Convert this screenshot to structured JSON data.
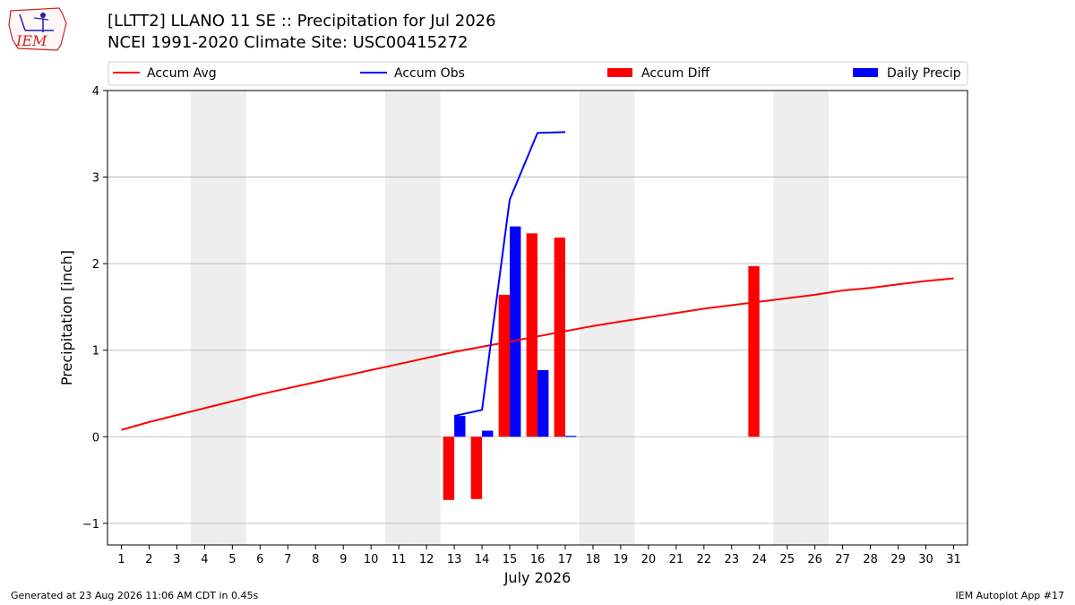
{
  "header": {
    "title_line1": "[LLTT2] LLANO 11 SE :: Precipitation for Jul 2026",
    "title_line2": "NCEI 1991-2020 Climate Site: USC00415272",
    "logo_text": "IEM"
  },
  "footer": {
    "generated": "Generated at 23 Aug 2026 11:06 AM CDT in 0.45s",
    "app": "IEM Autoplot App #17"
  },
  "colors": {
    "avg": "#ff0000",
    "obs": "#0000ff",
    "diff": "#ff0000",
    "daily": "#0000ff",
    "weekend": "#eeeeee",
    "grid": "#b0b0b0"
  },
  "chart_data": {
    "type": "bar",
    "xlabel": "July 2026",
    "ylabel": "Precipitation [inch]",
    "xlim": [
      0.5,
      31.5
    ],
    "ylim": [
      -1.25,
      4.0
    ],
    "yticks": [
      -1,
      0,
      1,
      2,
      3,
      4
    ],
    "ytick_labels": [
      "−1",
      "0",
      "1",
      "2",
      "3",
      "4"
    ],
    "xticks": [
      1,
      2,
      3,
      4,
      5,
      6,
      7,
      8,
      9,
      10,
      11,
      12,
      13,
      14,
      15,
      16,
      17,
      18,
      19,
      20,
      21,
      22,
      23,
      24,
      25,
      26,
      27,
      28,
      29,
      30,
      31
    ],
    "grid": "horizontal",
    "legend_position": "top",
    "weekend_days": [
      4,
      5,
      11,
      12,
      18,
      19,
      25,
      26
    ],
    "legend": [
      {
        "label": "Accum Avg",
        "kind": "line",
        "color": "#ff0000"
      },
      {
        "label": "Accum Obs",
        "kind": "line",
        "color": "#0000ff"
      },
      {
        "label": "Accum Diff",
        "kind": "bar",
        "color": "#ff0000"
      },
      {
        "label": "Daily Precip",
        "kind": "bar",
        "color": "#0000ff"
      }
    ],
    "series": [
      {
        "name": "Accum Avg",
        "type": "line",
        "x": [
          1,
          2,
          3,
          4,
          5,
          6,
          7,
          8,
          9,
          10,
          11,
          12,
          13,
          14,
          15,
          16,
          17,
          18,
          19,
          20,
          21,
          22,
          23,
          24,
          25,
          26,
          27,
          28,
          29,
          30,
          31
        ],
        "values": [
          0.08,
          0.17,
          0.25,
          0.33,
          0.41,
          0.49,
          0.56,
          0.63,
          0.7,
          0.77,
          0.84,
          0.91,
          0.98,
          1.04,
          1.1,
          1.16,
          1.22,
          1.28,
          1.33,
          1.38,
          1.43,
          1.48,
          1.52,
          1.56,
          1.6,
          1.64,
          1.69,
          1.72,
          1.76,
          1.8,
          1.83
        ]
      },
      {
        "name": "Accum Obs",
        "type": "line",
        "x": [
          13,
          14,
          15,
          16,
          17
        ],
        "values": [
          0.24,
          0.31,
          2.74,
          3.51,
          3.52
        ]
      },
      {
        "name": "Accum Diff",
        "type": "bar",
        "x": [
          13,
          14,
          15,
          16,
          17,
          24
        ],
        "values": [
          -0.73,
          -0.72,
          1.64,
          2.35,
          2.3,
          1.97
        ]
      },
      {
        "name": "Daily Precip",
        "type": "bar",
        "x": [
          13,
          14,
          15,
          16,
          17
        ],
        "values": [
          0.24,
          0.07,
          2.43,
          0.77,
          0.01
        ]
      }
    ]
  }
}
